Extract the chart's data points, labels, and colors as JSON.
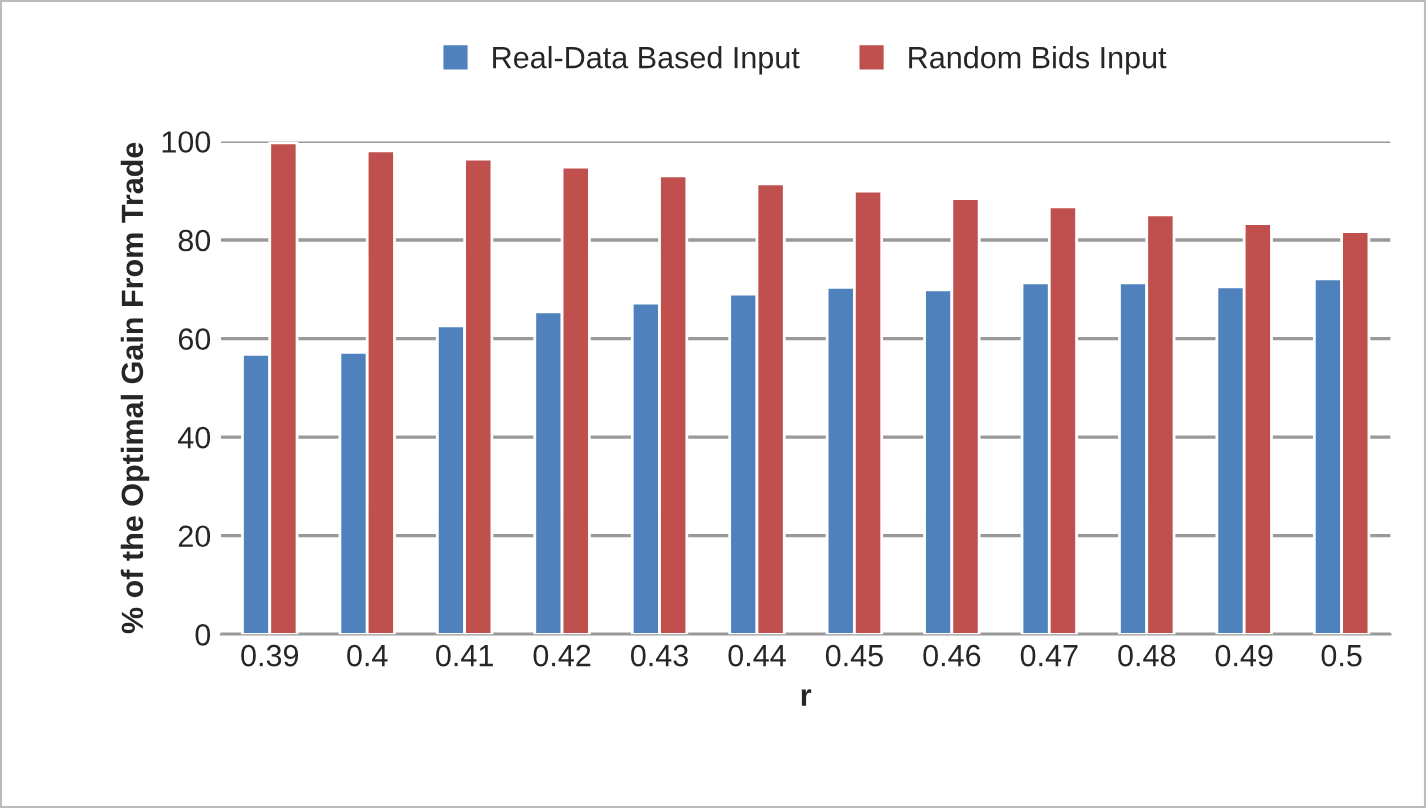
{
  "chart_data": {
    "type": "bar",
    "xlabel": "r",
    "ylabel": "% of the Optimal Gain From Trade",
    "categories": [
      "0.39",
      "0.4",
      "0.41",
      "0.42",
      "0.43",
      "0.44",
      "0.45",
      "0.46",
      "0.47",
      "0.48",
      "0.49",
      "0.5"
    ],
    "series": [
      {
        "name": "Real-Data Based Input",
        "color": "#4f81bd",
        "values": [
          56.8,
          57.2,
          62.6,
          65.4,
          67.2,
          69.0,
          70.4,
          69.9,
          71.3,
          71.3,
          70.5,
          72.1
        ]
      },
      {
        "name": "Random Bids Input",
        "color": "#c0504d",
        "values": [
          99.7,
          98.1,
          96.4,
          94.8,
          93.0,
          91.4,
          89.9,
          88.4,
          86.7,
          85.1,
          83.3,
          81.7
        ]
      }
    ],
    "ylim": [
      0,
      100
    ],
    "yticks": [
      0,
      20,
      40,
      60,
      80,
      100
    ],
    "grid": "y",
    "legend": "top"
  }
}
